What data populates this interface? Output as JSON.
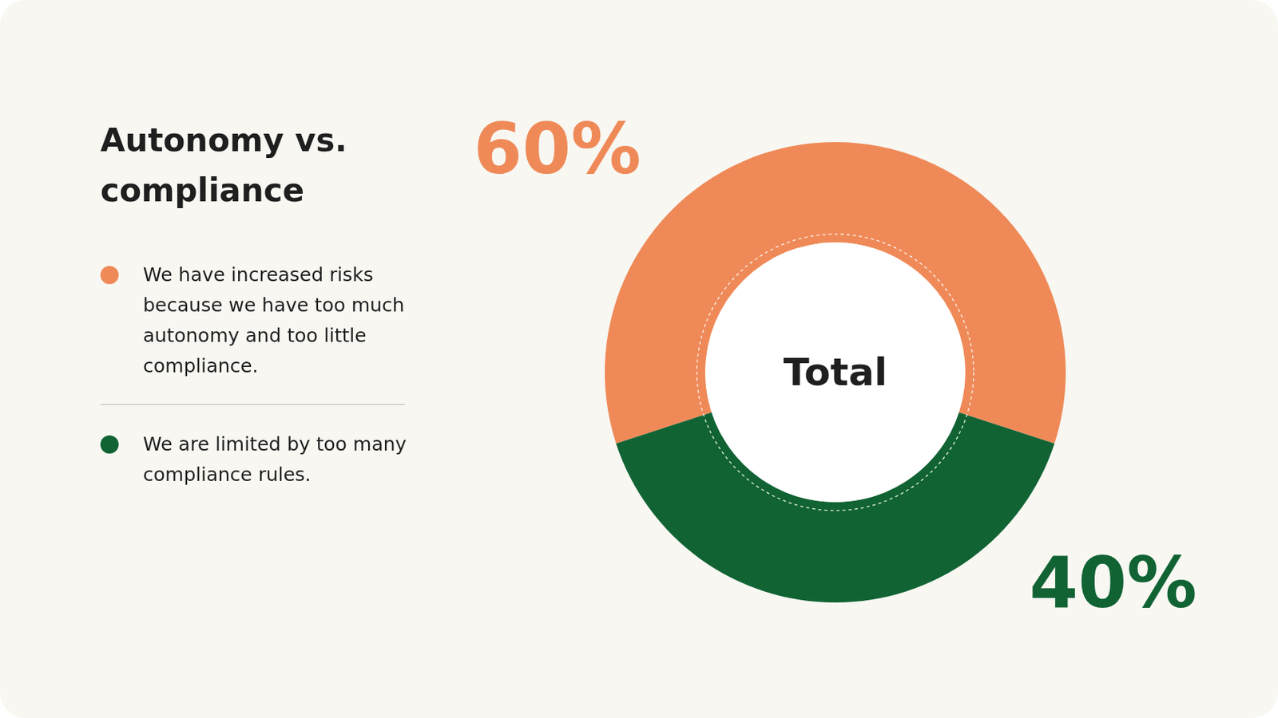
{
  "chart_data": {
    "type": "doughnut",
    "title": "Autonomy vs. compliance",
    "categories": [
      "We have increased risks because we have too much autonomy and too little compliance.",
      "We are limited by too many compliance rules."
    ],
    "values": [
      60,
      40
    ],
    "value_labels": [
      "60%",
      "40%"
    ],
    "colors": [
      "#ef8a58",
      "#116334"
    ],
    "data_labels": true,
    "legend": "left",
    "annotations": [
      "Total"
    ]
  }
}
